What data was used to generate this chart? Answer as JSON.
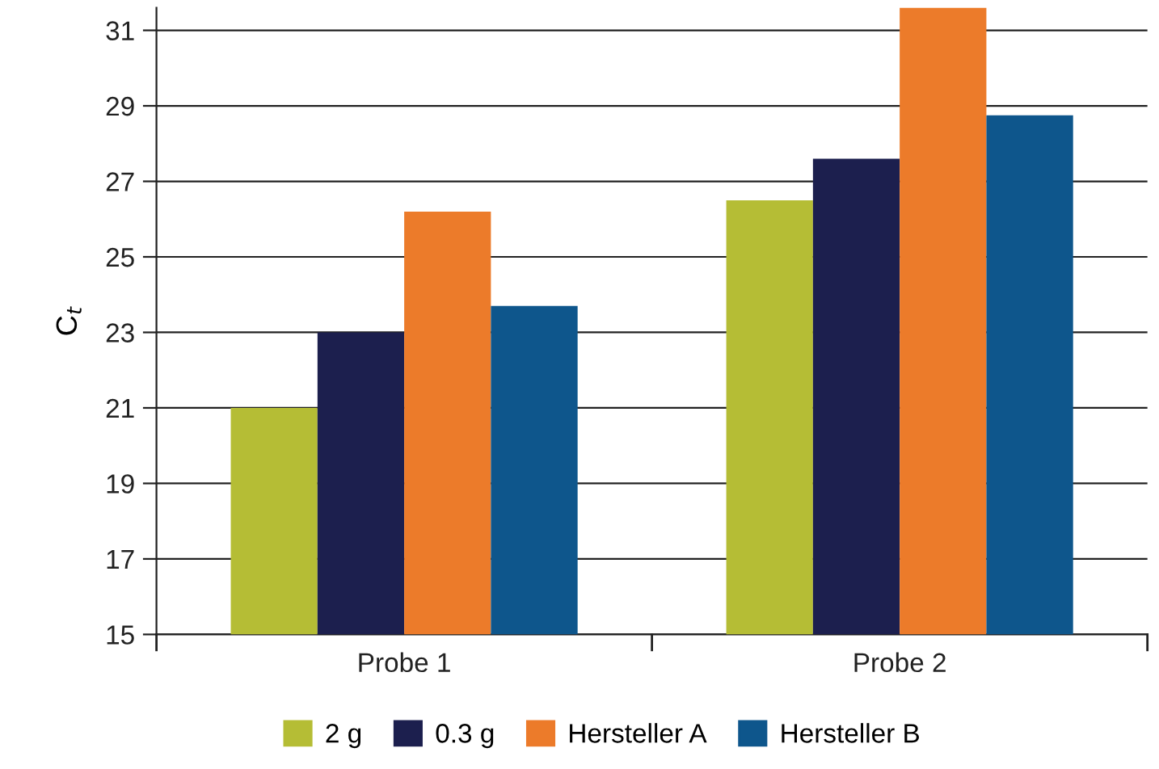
{
  "chart_data": {
    "type": "bar",
    "ylabel": "C$_{t}$",
    "categories": [
      "Probe 1",
      "Probe 2"
    ],
    "series": [
      {
        "name": "2 g",
        "color": "#b5bd35",
        "values": [
          21.0,
          26.5
        ]
      },
      {
        "name": "0.3 g",
        "color": "#1c1f4e",
        "values": [
          23.0,
          27.6
        ]
      },
      {
        "name": "Hersteller A",
        "color": "#ec7b2a",
        "values": [
          26.2,
          31.6
        ]
      },
      {
        "name": "Hersteller B",
        "color": "#0e568c",
        "values": [
          23.7,
          28.75
        ]
      }
    ],
    "ylim": [
      15,
      31.6
    ],
    "yticks": [
      15,
      17,
      19,
      21,
      23,
      25,
      27,
      29,
      31
    ],
    "grid": "y",
    "legend": "bottom"
  }
}
